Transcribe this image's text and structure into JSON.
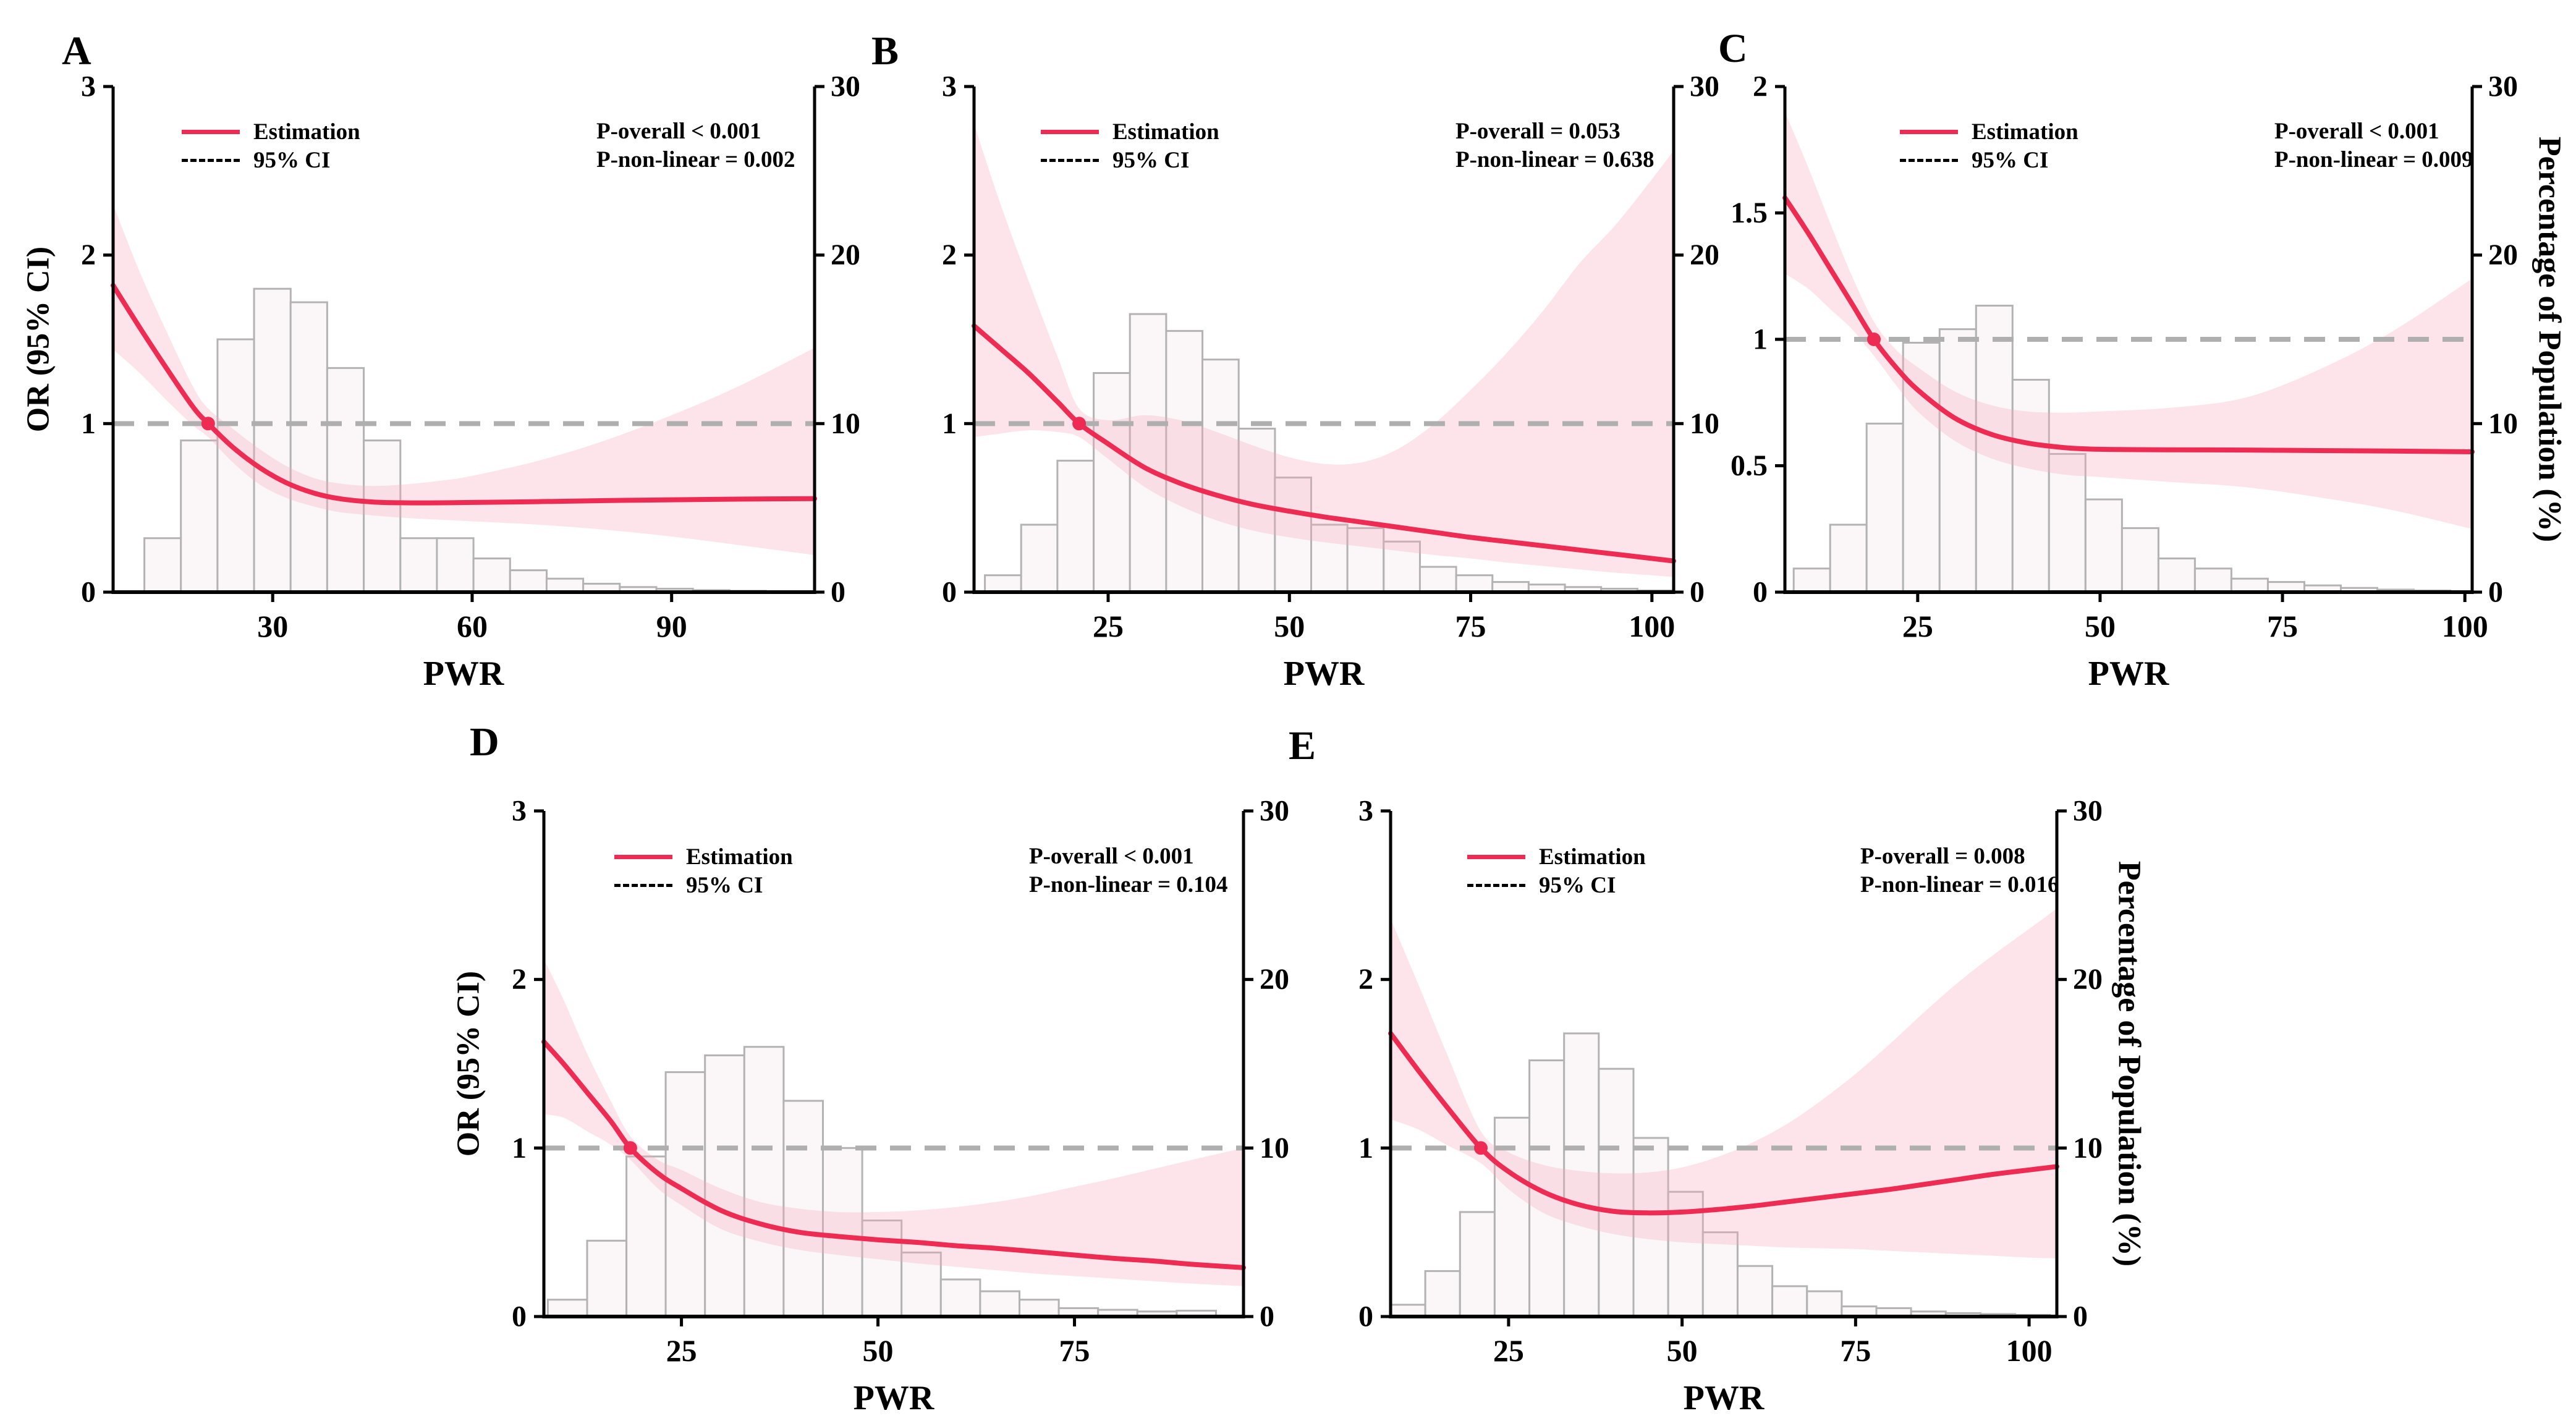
{
  "legend": {
    "estimation_label": "Estimation",
    "ci_label": "95% CI"
  },
  "colors": {
    "estimation": "#EE2B52",
    "ci_band": "#F5AABE",
    "ci_band_opacity": 0.32,
    "hist_fill": "#FBF7F9",
    "hist_stroke": "#B3B3B3",
    "dashed_reference": "#AFAFAF",
    "axis": "#000000"
  },
  "chart_data": [
    {
      "panel": "A",
      "type": "line+histogram",
      "p_overall": "P-overall < 0.001",
      "p_non_linear": "P-non-linear = 0.002",
      "x": {
        "label": "PWR",
        "range": [
          6,
          111.5
        ],
        "ticks": [
          30,
          60,
          90
        ]
      },
      "y_left": {
        "label": "OR (95% CI)",
        "range": [
          0,
          3
        ],
        "ticks": [
          0,
          1,
          2,
          3
        ],
        "show_label": true
      },
      "y_right": {
        "label": "Percentage of Population (%)",
        "range": [
          0,
          30
        ],
        "ticks": [
          0,
          10,
          20,
          30
        ],
        "show_label": false
      },
      "reference_or": 1,
      "crossing_point": {
        "pwr": 20.3,
        "or": 1
      },
      "estimation": {
        "pwr": [
          6,
          10,
          14,
          18,
          20.3,
          24,
          28,
          32,
          36,
          40,
          45,
          50,
          55,
          60,
          70,
          80,
          90,
          100,
          111.5
        ],
        "or": [
          1.82,
          1.57,
          1.33,
          1.1,
          1.0,
          0.86,
          0.74,
          0.65,
          0.59,
          0.555,
          0.535,
          0.53,
          0.53,
          0.532,
          0.537,
          0.543,
          0.548,
          0.552,
          0.555
        ]
      },
      "ci": {
        "upper": [
          2.3,
          1.9,
          1.55,
          1.22,
          1.09,
          0.97,
          0.85,
          0.75,
          0.68,
          0.645,
          0.63,
          0.64,
          0.66,
          0.69,
          0.78,
          0.9,
          1.05,
          1.22,
          1.45
        ],
        "lower": [
          1.44,
          1.3,
          1.14,
          0.99,
          0.92,
          0.77,
          0.64,
          0.56,
          0.51,
          0.475,
          0.455,
          0.44,
          0.43,
          0.42,
          0.4,
          0.37,
          0.33,
          0.28,
          0.22
        ]
      },
      "histogram_percent": {
        "bin_start": 10.7,
        "bin_width": 5.5,
        "values": [
          3.2,
          9.0,
          15.0,
          18.0,
          17.2,
          13.3,
          9.0,
          3.2,
          3.2,
          2.0,
          1.3,
          0.8,
          0.5,
          0.3,
          0.2,
          0.12,
          0.08
        ]
      }
    },
    {
      "panel": "B",
      "type": "line+histogram",
      "p_overall": "P-overall = 0.053",
      "p_non_linear": "P-non-linear = 0.638",
      "x": {
        "label": "PWR",
        "range": [
          6.5,
          103
        ],
        "ticks": [
          25,
          50,
          75,
          100
        ]
      },
      "y_left": {
        "label": "OR (95% CI)",
        "range": [
          0,
          3
        ],
        "ticks": [
          0,
          1,
          2,
          3
        ],
        "show_label": false
      },
      "y_right": {
        "label": "Percentage of Population (%)",
        "range": [
          0,
          30
        ],
        "ticks": [
          0,
          10,
          20,
          30
        ],
        "show_label": false
      },
      "reference_or": 1,
      "crossing_point": {
        "pwr": 21,
        "or": 1
      },
      "estimation": {
        "pwr": [
          6.5,
          10,
          14,
          18,
          21,
          25,
          30,
          35,
          40,
          45,
          50,
          55,
          60,
          65,
          70,
          75,
          80,
          85,
          90,
          95,
          100,
          103
        ],
        "or": [
          1.58,
          1.45,
          1.3,
          1.13,
          1.0,
          0.88,
          0.74,
          0.645,
          0.575,
          0.52,
          0.48,
          0.445,
          0.415,
          0.385,
          0.355,
          0.325,
          0.3,
          0.275,
          0.25,
          0.225,
          0.2,
          0.185
        ]
      },
      "ci": {
        "upper": [
          2.78,
          2.32,
          1.85,
          1.4,
          1.09,
          1.02,
          1.05,
          1.02,
          0.95,
          0.87,
          0.8,
          0.76,
          0.77,
          0.85,
          1.0,
          1.2,
          1.42,
          1.67,
          1.95,
          2.18,
          2.45,
          2.62
        ],
        "lower": [
          0.92,
          0.94,
          0.96,
          0.95,
          0.92,
          0.79,
          0.625,
          0.51,
          0.425,
          0.365,
          0.325,
          0.295,
          0.27,
          0.245,
          0.22,
          0.2,
          0.175,
          0.155,
          0.135,
          0.115,
          0.1,
          0.09
        ]
      },
      "histogram_percent": {
        "bin_start": 8,
        "bin_width": 5,
        "values": [
          1.0,
          4.0,
          7.8,
          13.0,
          16.5,
          15.5,
          13.8,
          9.7,
          6.8,
          4.0,
          3.8,
          3.0,
          1.5,
          1.0,
          0.6,
          0.45,
          0.3,
          0.2,
          0.1
        ]
      }
    },
    {
      "panel": "C",
      "type": "line+histogram",
      "p_overall": "P-overall < 0.001",
      "p_non_linear": "P-non-linear = 0.009",
      "x": {
        "label": "PWR",
        "range": [
          6.8,
          101
        ],
        "ticks": [
          25,
          50,
          75,
          100
        ]
      },
      "y_left": {
        "label": "OR (95% CI)",
        "range": [
          0,
          2
        ],
        "ticks": [
          0,
          0.5,
          1,
          1.5,
          2
        ],
        "show_label": false
      },
      "y_right": {
        "label": "Percentage of Population (%)",
        "range": [
          0,
          30
        ],
        "ticks": [
          0,
          10,
          20,
          30
        ],
        "show_label": true
      },
      "reference_or": 1,
      "crossing_point": {
        "pwr": 19,
        "or": 1
      },
      "estimation": {
        "pwr": [
          6.8,
          10,
          13,
          16,
          19,
          22,
          25,
          30,
          35,
          40,
          45,
          50,
          60,
          70,
          80,
          90,
          101
        ],
        "or": [
          1.56,
          1.42,
          1.28,
          1.14,
          1.0,
          0.89,
          0.8,
          0.69,
          0.625,
          0.59,
          0.572,
          0.565,
          0.563,
          0.562,
          0.56,
          0.558,
          0.555
        ]
      },
      "ci": {
        "upper": [
          1.9,
          1.68,
          1.46,
          1.25,
          1.07,
          0.96,
          0.89,
          0.795,
          0.74,
          0.715,
          0.71,
          0.715,
          0.73,
          0.77,
          0.88,
          1.03,
          1.24
        ],
        "lower": [
          1.26,
          1.2,
          1.12,
          1.04,
          0.935,
          0.82,
          0.715,
          0.6,
          0.53,
          0.49,
          0.465,
          0.455,
          0.435,
          0.415,
          0.375,
          0.325,
          0.25
        ]
      },
      "histogram_percent": {
        "bin_start": 8,
        "bin_width": 5,
        "values": [
          1.4,
          4.0,
          10.0,
          14.8,
          15.6,
          17.0,
          12.6,
          8.2,
          5.5,
          3.8,
          2.0,
          1.4,
          0.8,
          0.6,
          0.4,
          0.25,
          0.15,
          0.1
        ]
      }
    },
    {
      "panel": "D",
      "type": "line+histogram",
      "p_overall": "P-overall < 0.001",
      "p_non_linear": "P-non-linear = 0.104",
      "x": {
        "label": "PWR",
        "range": [
          7.5,
          96.5
        ],
        "ticks": [
          25,
          50,
          75
        ]
      },
      "y_left": {
        "label": "OR (95% CI)",
        "range": [
          0,
          3
        ],
        "ticks": [
          0,
          1,
          2,
          3
        ],
        "show_label": true
      },
      "y_right": {
        "label": "Percentage of Population (%)",
        "range": [
          0,
          30
        ],
        "ticks": [
          0,
          10,
          20,
          30
        ],
        "show_label": false
      },
      "reference_or": 1,
      "crossing_point": {
        "pwr": 18.5,
        "or": 1
      },
      "estimation": {
        "pwr": [
          7.5,
          10,
          13,
          16,
          18.5,
          22,
          25,
          30,
          35,
          40,
          45,
          50,
          55,
          60,
          65,
          70,
          75,
          80,
          85,
          90,
          96.5
        ],
        "or": [
          1.63,
          1.5,
          1.33,
          1.16,
          1.0,
          0.85,
          0.76,
          0.63,
          0.55,
          0.5,
          0.475,
          0.455,
          0.44,
          0.42,
          0.405,
          0.385,
          0.365,
          0.345,
          0.33,
          0.31,
          0.29
        ]
      },
      "ci": {
        "upper": [
          2.12,
          1.88,
          1.56,
          1.28,
          1.07,
          0.93,
          0.87,
          0.76,
          0.68,
          0.64,
          0.62,
          0.62,
          0.63,
          0.65,
          0.68,
          0.72,
          0.77,
          0.82,
          0.875,
          0.93,
          1.0
        ],
        "lower": [
          1.2,
          1.18,
          1.1,
          1.02,
          0.93,
          0.76,
          0.66,
          0.52,
          0.445,
          0.395,
          0.365,
          0.34,
          0.315,
          0.295,
          0.275,
          0.255,
          0.24,
          0.225,
          0.21,
          0.195,
          0.18
        ]
      },
      "histogram_percent": {
        "bin_start": 8,
        "bin_width": 5,
        "values": [
          1.0,
          4.5,
          9.5,
          14.5,
          15.5,
          16.0,
          12.8,
          10.0,
          5.7,
          3.8,
          2.2,
          1.5,
          1.0,
          0.5,
          0.4,
          0.3,
          0.35
        ]
      }
    },
    {
      "panel": "E",
      "type": "line+histogram",
      "p_overall": "P-overall = 0.008",
      "p_non_linear": "P-non-linear = 0.016",
      "x": {
        "label": "PWR",
        "range": [
          8,
          104
        ],
        "ticks": [
          25,
          50,
          75,
          100
        ]
      },
      "y_left": {
        "label": "OR (95% CI)",
        "range": [
          0,
          3
        ],
        "ticks": [
          0,
          1,
          2,
          3
        ],
        "show_label": false
      },
      "y_right": {
        "label": "Percentage of Population (%)",
        "range": [
          0,
          30
        ],
        "ticks": [
          0,
          10,
          20,
          30
        ],
        "show_label": true
      },
      "reference_or": 1,
      "crossing_point": {
        "pwr": 21,
        "or": 1
      },
      "estimation": {
        "pwr": [
          8,
          12,
          16,
          21,
          25,
          30,
          35,
          40,
          45,
          50,
          55,
          60,
          65,
          70,
          75,
          80,
          85,
          90,
          95,
          100,
          104
        ],
        "or": [
          1.68,
          1.46,
          1.25,
          1.0,
          0.86,
          0.74,
          0.665,
          0.625,
          0.615,
          0.62,
          0.635,
          0.655,
          0.68,
          0.705,
          0.73,
          0.755,
          0.785,
          0.815,
          0.845,
          0.87,
          0.89
        ]
      },
      "ci": {
        "upper": [
          2.36,
          1.97,
          1.57,
          1.1,
          0.975,
          0.9,
          0.865,
          0.85,
          0.855,
          0.885,
          0.945,
          1.03,
          1.14,
          1.28,
          1.44,
          1.62,
          1.81,
          1.99,
          2.15,
          2.3,
          2.42
        ],
        "lower": [
          1.17,
          1.11,
          1.02,
          0.91,
          0.755,
          0.615,
          0.54,
          0.49,
          0.46,
          0.44,
          0.43,
          0.42,
          0.41,
          0.405,
          0.4,
          0.39,
          0.38,
          0.37,
          0.36,
          0.35,
          0.345
        ]
      },
      "histogram_percent": {
        "bin_start": 8,
        "bin_width": 5,
        "values": [
          0.7,
          2.7,
          6.2,
          11.8,
          15.2,
          16.8,
          14.7,
          10.6,
          7.4,
          5.0,
          3.0,
          1.8,
          1.5,
          0.6,
          0.5,
          0.3,
          0.2,
          0.15,
          0.1
        ]
      }
    }
  ]
}
